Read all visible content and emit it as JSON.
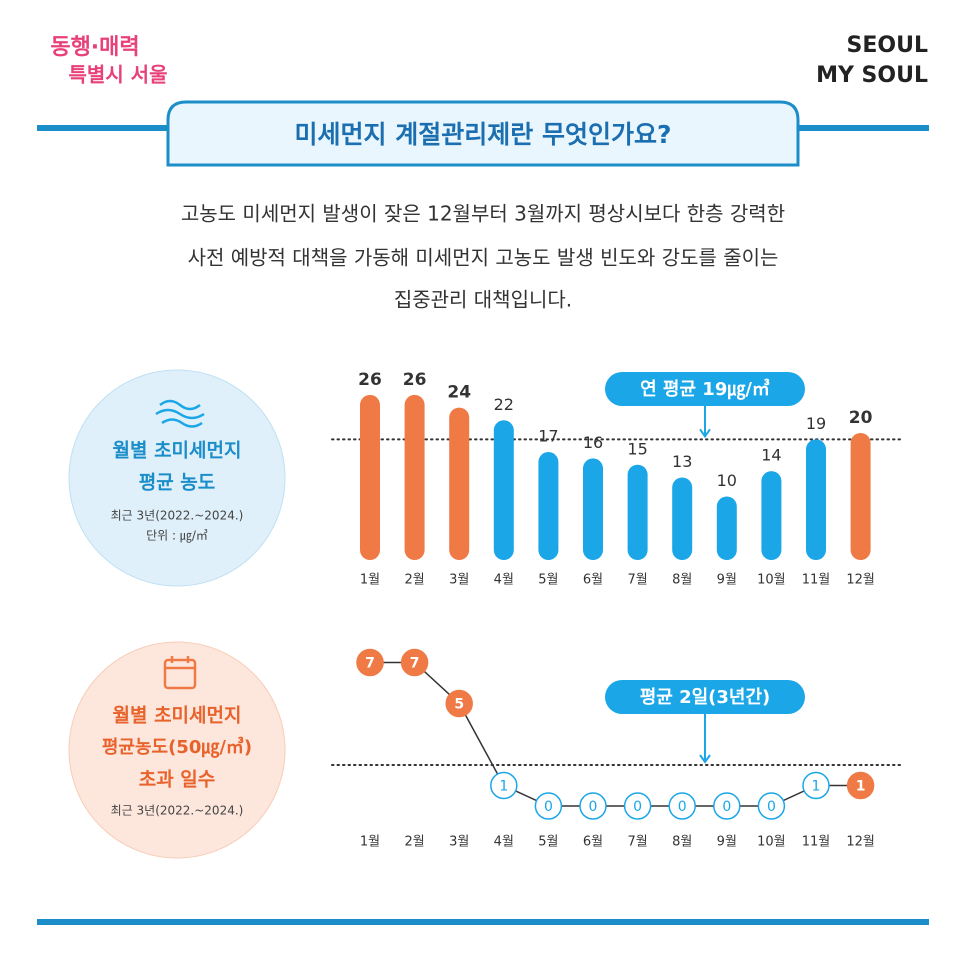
{
  "header": {
    "logo_left": [
      "동행·매력",
      "특별시 서울"
    ],
    "logo_right": [
      "SEOUL",
      "MY SOUL"
    ],
    "title": "미세먼지 계절관리제란 무엇인가요?"
  },
  "description": [
    "고농도 미세먼지 발생이 잦은 12월부터 3월까지 평상시보다 한층 강력한",
    "사전 예방적 대책을 가동해 미세먼지 고농도 발생 빈도와 강도를 줄이는",
    "집중관리 대책입니다."
  ],
  "panels": [
    {
      "lines": [
        "월별 초미세먼지",
        "평균 농도"
      ],
      "notes": [
        "최근 3년(2022.~2024.)",
        "단위 : ㎍/㎥"
      ]
    },
    {
      "lines": [
        "월별 초미세먼지",
        "평균농도(50㎍/㎥)",
        "초과 일수"
      ],
      "notes": [
        "최근 3년(2022.~2024.)"
      ]
    }
  ],
  "chart_data": [
    {
      "type": "bar",
      "categories": [
        "1월",
        "2월",
        "3월",
        "4월",
        "5월",
        "6월",
        "7월",
        "8월",
        "9월",
        "10월",
        "11월",
        "12월"
      ],
      "values": [
        26,
        26,
        24,
        22,
        17,
        16,
        15,
        13,
        10,
        14,
        19,
        20
      ],
      "colors": [
        "#ef7a45",
        "#ef7a45",
        "#ef7a45",
        "#1ba6e8",
        "#1ba6e8",
        "#1ba6e8",
        "#1ba6e8",
        "#1ba6e8",
        "#1ba6e8",
        "#1ba6e8",
        "#1ba6e8",
        "#ef7a45"
      ],
      "average": 19,
      "annotation": "연 평균 19㎍/㎥"
    },
    {
      "type": "line",
      "categories": [
        "1월",
        "2월",
        "3월",
        "4월",
        "5월",
        "6월",
        "7월",
        "8월",
        "9월",
        "10월",
        "11월",
        "12월"
      ],
      "values": [
        7,
        7,
        5,
        1,
        0,
        0,
        0,
        0,
        0,
        0,
        1,
        1
      ],
      "colors": [
        "#ef7a45",
        "#ef7a45",
        "#ef7a45",
        "#1ba6e8",
        "#1ba6e8",
        "#1ba6e8",
        "#1ba6e8",
        "#1ba6e8",
        "#1ba6e8",
        "#1ba6e8",
        "#1ba6e8",
        "#ef7a45"
      ],
      "marker_styles": [
        "filled",
        "filled",
        "filled",
        "open",
        "open",
        "open",
        "open",
        "open",
        "open",
        "open",
        "open",
        "filled"
      ],
      "average": 2,
      "annotation": "평균 2일(3년간)"
    }
  ]
}
